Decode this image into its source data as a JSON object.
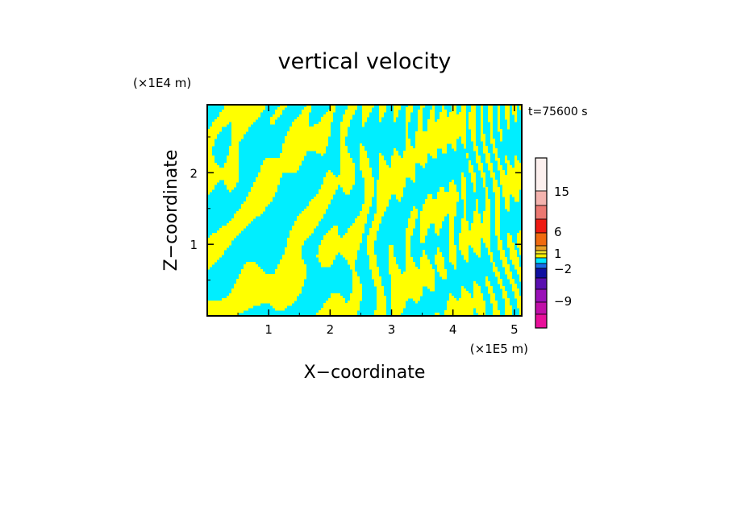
{
  "chart_data": {
    "type": "heatmap",
    "title": "vertical velocity",
    "xlabel": "X−coordinate",
    "ylabel": "Z−coordinate",
    "x_unit": "(×1E5 m)",
    "y_unit": "(×1E4 m)",
    "time_label": "t=75600 s",
    "xlim": [
      0,
      5.12
    ],
    "ylim": [
      0,
      2.95
    ],
    "x_ticks": [
      1,
      2,
      3,
      4,
      5
    ],
    "y_ticks": [
      1,
      2
    ],
    "colorbar": {
      "tick_labels": [
        "15",
        "6",
        "1",
        "−2",
        "−9"
      ],
      "levels_top_to_bottom": [
        {
          "color": "#fdf0ee"
        },
        {
          "color": "#f4b3ae"
        },
        {
          "color": "#ec7871"
        },
        {
          "color": "#ee1a12"
        },
        {
          "color": "#f06a10"
        },
        {
          "color": "#e8a028"
        },
        {
          "color": "#f5e22a"
        },
        {
          "color": "#f5f000"
        },
        {
          "color": "#00e8ff"
        },
        {
          "color": "#1a6ce8"
        },
        {
          "color": "#0f0fa0"
        },
        {
          "color": "#5a0fb0"
        },
        {
          "color": "#9a10b8"
        },
        {
          "color": "#c010a8"
        },
        {
          "color": "#e8109a"
        }
      ]
    },
    "dominant_colors": {
      "positive": "#ffff00",
      "negative": "#00eeff"
    }
  }
}
